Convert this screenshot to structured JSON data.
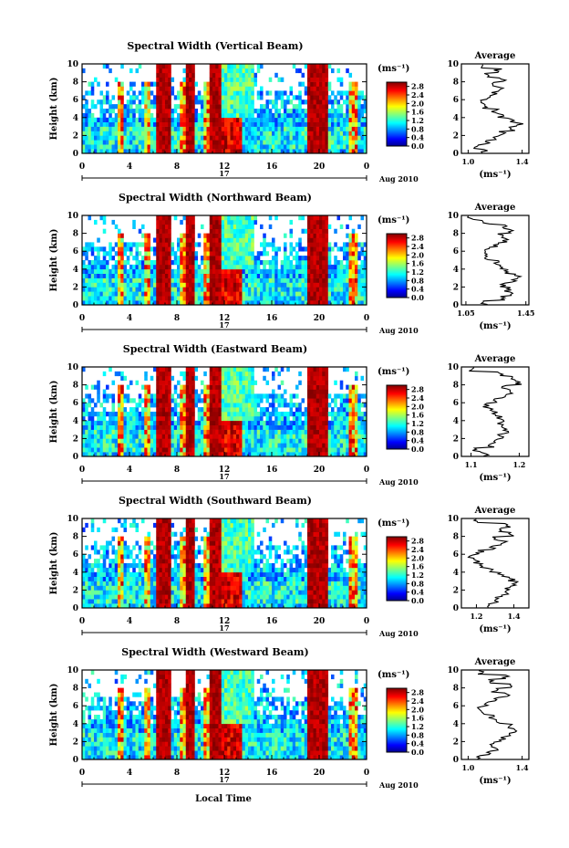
{
  "figure": {
    "xlabel": "Local Time",
    "date_label": "Aug 2010",
    "day_label": "17"
  },
  "chart_data": [
    {
      "type": "heatmap",
      "title": "Spectral Width (Vertical Beam)",
      "xlabel": "Local Time",
      "ylabel": "Height (km)",
      "x_ticks": [
        "0",
        "4",
        "8",
        "12",
        "16",
        "20",
        "0"
      ],
      "y_ticks": [
        "0",
        "2",
        "4",
        "6",
        "8",
        "10"
      ],
      "xlim": [
        0,
        24
      ],
      "ylim": [
        0,
        10
      ],
      "colorbar": {
        "unit": "(ms⁻¹)",
        "ticks": [
          "0.0",
          "0.4",
          "0.8",
          "1.2",
          "1.6",
          "2.0",
          "2.4",
          "2.8"
        ],
        "range": [
          0,
          3.0
        ]
      },
      "profile": {
        "title": "Average",
        "xlabel": "(ms⁻¹)",
        "x_ticks": [
          "1.0",
          "1.4"
        ],
        "xlim": [
          0.95,
          1.45
        ],
        "y_ticks": [
          "0",
          "2",
          "4",
          "6",
          "8",
          "10"
        ],
        "heights": [
          0.3,
          0.8,
          1.3,
          1.8,
          2.3,
          2.8,
          3.3,
          3.8,
          4.3,
          4.8,
          5.3,
          5.8,
          6.3,
          6.8,
          7.3,
          7.8,
          8.3,
          8.8,
          9.3,
          9.8
        ],
        "values": [
          1.12,
          1.05,
          1.15,
          1.2,
          1.25,
          1.33,
          1.38,
          1.32,
          1.24,
          1.2,
          1.13,
          1.1,
          1.14,
          1.2,
          1.24,
          1.18,
          1.26,
          1.14,
          1.22,
          1.1
        ]
      }
    },
    {
      "type": "heatmap",
      "title": "Spectral Width (Northward Beam)",
      "xlabel": "Local Time",
      "ylabel": "Height (km)",
      "x_ticks": [
        "0",
        "4",
        "8",
        "12",
        "16",
        "20",
        "0"
      ],
      "y_ticks": [
        "0",
        "2",
        "4",
        "6",
        "8",
        "10"
      ],
      "xlim": [
        0,
        24
      ],
      "ylim": [
        0,
        10
      ],
      "colorbar": {
        "unit": "(ms⁻¹)",
        "ticks": [
          "0.0",
          "0.4",
          "0.8",
          "1.2",
          "1.6",
          "2.0",
          "2.4",
          "2.8"
        ],
        "range": [
          0,
          3.0
        ]
      },
      "profile": {
        "title": "Average",
        "xlabel": "(ms⁻¹)",
        "x_ticks": [
          "1.05",
          "1.45"
        ],
        "xlim": [
          1.02,
          1.47
        ],
        "heights": [
          0.3,
          0.8,
          1.3,
          1.8,
          2.3,
          2.8,
          3.3,
          3.8,
          4.3,
          4.8,
          5.3,
          5.8,
          6.3,
          6.8,
          7.3,
          7.8,
          8.3,
          8.8,
          9.3,
          9.8
        ],
        "values": [
          1.18,
          1.3,
          1.35,
          1.33,
          1.3,
          1.38,
          1.4,
          1.33,
          1.28,
          1.25,
          1.2,
          1.18,
          1.2,
          1.25,
          1.32,
          1.28,
          1.34,
          1.3,
          1.18,
          1.08
        ]
      }
    },
    {
      "type": "heatmap",
      "title": "Spectral Width (Eastward Beam)",
      "xlabel": "Local Time",
      "ylabel": "Height (km)",
      "x_ticks": [
        "0",
        "4",
        "8",
        "12",
        "16",
        "20",
        "0"
      ],
      "y_ticks": [
        "0",
        "2",
        "4",
        "6",
        "8",
        "10"
      ],
      "xlim": [
        0,
        24
      ],
      "ylim": [
        0,
        10
      ],
      "colorbar": {
        "unit": "(ms⁻¹)",
        "ticks": [
          "0.0",
          "0.4",
          "0.8",
          "1.2",
          "1.6",
          "2.0",
          "2.4",
          "2.8"
        ],
        "range": [
          0,
          3.0
        ]
      },
      "profile": {
        "title": "Average",
        "xlabel": "(ms⁻¹)",
        "x_ticks": [
          "1.1",
          "1.2"
        ],
        "xlim": [
          1.08,
          1.22
        ],
        "heights": [
          0.3,
          0.8,
          1.3,
          1.8,
          2.3,
          2.8,
          3.3,
          3.8,
          4.3,
          4.8,
          5.3,
          5.8,
          6.3,
          6.8,
          7.3,
          7.8,
          8.3,
          8.8,
          9.3,
          9.8
        ],
        "values": [
          1.13,
          1.11,
          1.14,
          1.15,
          1.16,
          1.17,
          1.17,
          1.16,
          1.16,
          1.15,
          1.14,
          1.13,
          1.15,
          1.17,
          1.18,
          1.17,
          1.2,
          1.19,
          1.16,
          1.1
        ]
      }
    },
    {
      "type": "heatmap",
      "title": "Spectral Width (Southward Beam)",
      "xlabel": "Local Time",
      "ylabel": "Height (km)",
      "x_ticks": [
        "0",
        "4",
        "8",
        "12",
        "16",
        "20",
        "0"
      ],
      "y_ticks": [
        "0",
        "2",
        "4",
        "6",
        "8",
        "10"
      ],
      "xlim": [
        0,
        24
      ],
      "ylim": [
        0,
        10
      ],
      "colorbar": {
        "unit": "(ms⁻¹)",
        "ticks": [
          "0.0",
          "0.4",
          "0.8",
          "1.2",
          "1.6",
          "2.0",
          "2.4",
          "2.8"
        ],
        "range": [
          0,
          3.0
        ]
      },
      "profile": {
        "title": "Average",
        "xlabel": "(ms⁻¹)",
        "x_ticks": [
          "1.2",
          "1.4"
        ],
        "xlim": [
          1.12,
          1.48
        ],
        "heights": [
          0.3,
          0.8,
          1.3,
          1.8,
          2.3,
          2.8,
          3.3,
          3.8,
          4.3,
          4.8,
          5.3,
          5.8,
          6.3,
          6.8,
          7.3,
          7.8,
          8.3,
          8.8,
          9.3,
          9.8
        ],
        "values": [
          1.25,
          1.3,
          1.32,
          1.35,
          1.37,
          1.4,
          1.39,
          1.33,
          1.28,
          1.22,
          1.2,
          1.17,
          1.22,
          1.28,
          1.35,
          1.3,
          1.38,
          1.32,
          1.36,
          1.2
        ]
      }
    },
    {
      "type": "heatmap",
      "title": "Spectral Width (Westward Beam)",
      "xlabel": "Local Time",
      "ylabel": "Height (km)",
      "x_ticks": [
        "0",
        "4",
        "8",
        "12",
        "16",
        "20",
        "0"
      ],
      "y_ticks": [
        "0",
        "2",
        "4",
        "6",
        "8",
        "10"
      ],
      "xlim": [
        0,
        24
      ],
      "ylim": [
        0,
        10
      ],
      "colorbar": {
        "unit": "(ms⁻¹)",
        "ticks": [
          "0.0",
          "0.4",
          "0.8",
          "1.2",
          "1.6",
          "2.0",
          "2.4",
          "2.8"
        ],
        "range": [
          0,
          3.0
        ]
      },
      "profile": {
        "title": "Average",
        "xlabel": "(ms⁻¹)",
        "x_ticks": [
          "1.0",
          "1.4"
        ],
        "xlim": [
          0.95,
          1.45
        ],
        "heights": [
          0.3,
          0.8,
          1.3,
          1.8,
          2.3,
          2.8,
          3.3,
          3.8,
          4.3,
          4.8,
          5.3,
          5.8,
          6.3,
          6.8,
          7.3,
          7.8,
          8.3,
          8.8,
          9.3,
          9.8
        ],
        "values": [
          1.08,
          1.15,
          1.2,
          1.18,
          1.25,
          1.3,
          1.36,
          1.3,
          1.22,
          1.18,
          1.12,
          1.08,
          1.12,
          1.22,
          1.3,
          1.2,
          1.34,
          1.16,
          1.28,
          1.1
        ]
      }
    }
  ]
}
